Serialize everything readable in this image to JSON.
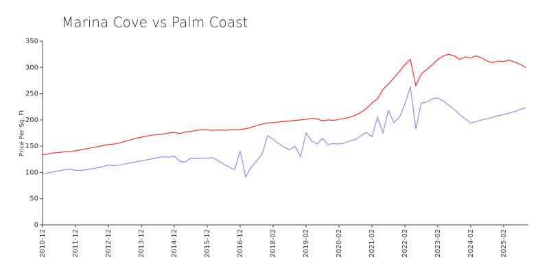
{
  "chart_data": {
    "type": "line",
    "title": "Marina Cove vs Palm Coast",
    "y_label": "Price Per Sq. Ft",
    "categories": [
      "2010-12",
      null,
      null,
      null,
      null,
      null,
      "2011-12",
      null,
      null,
      null,
      null,
      null,
      "2012-12",
      null,
      null,
      null,
      null,
      null,
      "2013-12",
      null,
      null,
      null,
      null,
      null,
      "2014-12",
      null,
      null,
      null,
      null,
      null,
      "2015-12",
      null,
      null,
      null,
      null,
      null,
      "2016-12",
      null,
      null,
      null,
      null,
      null,
      "2018-02",
      null,
      null,
      null,
      null,
      null,
      "2019-02",
      null,
      null,
      null,
      null,
      null,
      "2020-02",
      null,
      null,
      null,
      null,
      null,
      "2021-02",
      null,
      null,
      null,
      null,
      null,
      "2022-02",
      null,
      null,
      null,
      null,
      null,
      "2023-02",
      null,
      null,
      null,
      null,
      null,
      "2024-02",
      null,
      null,
      null,
      null,
      null,
      "2025-02",
      null,
      null,
      null,
      null
    ],
    "series": [
      {
        "color": "#ff2a2a",
        "values": [
          134,
          135,
          137,
          138,
          139,
          140,
          141,
          143,
          145,
          147,
          149,
          151,
          153,
          154,
          156,
          159,
          162,
          165,
          167,
          169,
          171,
          172,
          173,
          175,
          176,
          174,
          177,
          178,
          180,
          181,
          181,
          180,
          181,
          180,
          181,
          181,
          182,
          183,
          186,
          189,
          192,
          194,
          195,
          196,
          197,
          198,
          199,
          200,
          201,
          203,
          202,
          198,
          200,
          199,
          201,
          203,
          205,
          209,
          214,
          222,
          232,
          240,
          258,
          268,
          280,
          292,
          305,
          315,
          265,
          288,
          296,
          305,
          315,
          322,
          325,
          322,
          315,
          320,
          318,
          322,
          318,
          312,
          309,
          312,
          311,
          314,
          310,
          306,
          300
        ]
      },
      {
        "color": "#8c8cf5",
        "values": [
          97,
          99,
          101,
          103,
          105,
          106,
          104,
          104,
          105,
          107,
          109,
          111,
          114,
          113,
          114,
          116,
          118,
          120,
          122,
          124,
          126,
          128,
          130,
          129,
          131,
          121,
          120,
          127,
          126,
          127,
          127,
          128,
          122,
          116,
          110,
          105,
          141,
          91,
          110,
          122,
          135,
          170,
          163,
          155,
          148,
          143,
          150,
          130,
          175,
          160,
          154,
          165,
          153,
          155,
          154,
          156,
          160,
          163,
          170,
          176,
          168,
          205,
          175,
          218,
          195,
          205,
          230,
          263,
          183,
          232,
          234,
          240,
          242,
          236,
          228,
          220,
          210,
          202,
          194,
          197,
          200,
          202,
          205,
          208,
          210,
          213,
          216,
          220,
          223
        ]
      }
    ],
    "ylim": [
      0,
      350
    ],
    "yticks": [
      0,
      50,
      100,
      150,
      200,
      250,
      300,
      350
    ]
  }
}
